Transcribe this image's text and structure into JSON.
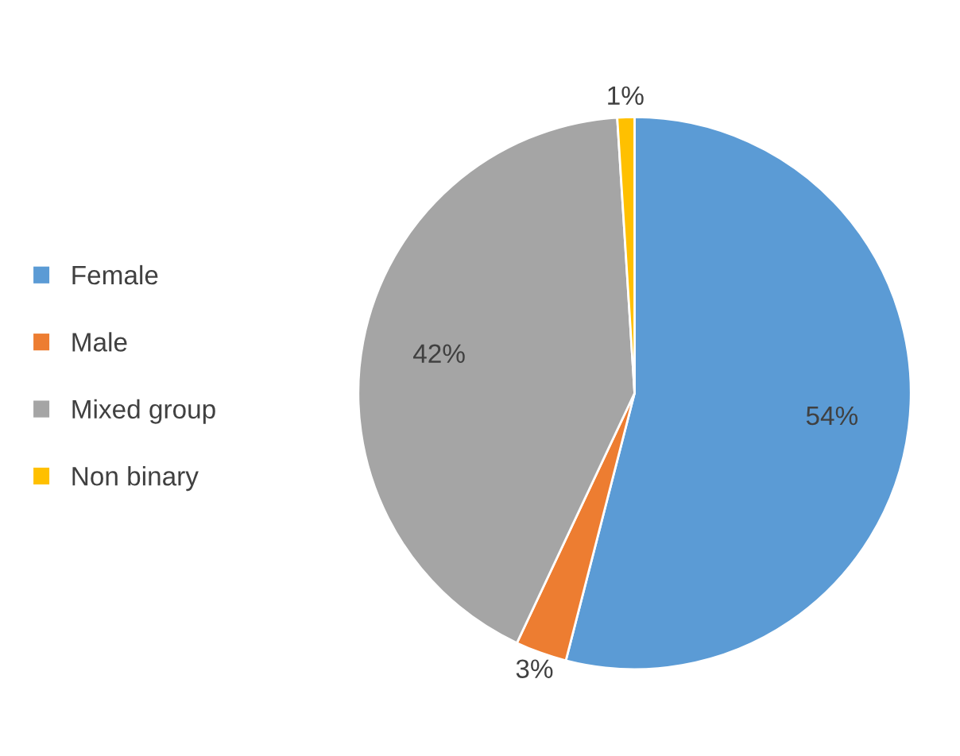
{
  "chart_data": {
    "type": "pie",
    "categories": [
      "Female",
      "Male",
      "Mixed group",
      "Non binary"
    ],
    "values": [
      54,
      3,
      42,
      1
    ],
    "colors": [
      "#5b9bd5",
      "#ed7d31",
      "#a5a5a5",
      "#ffc000"
    ],
    "value_labels": [
      "54%",
      "3%",
      "42%",
      "1%"
    ],
    "legend": "left"
  }
}
